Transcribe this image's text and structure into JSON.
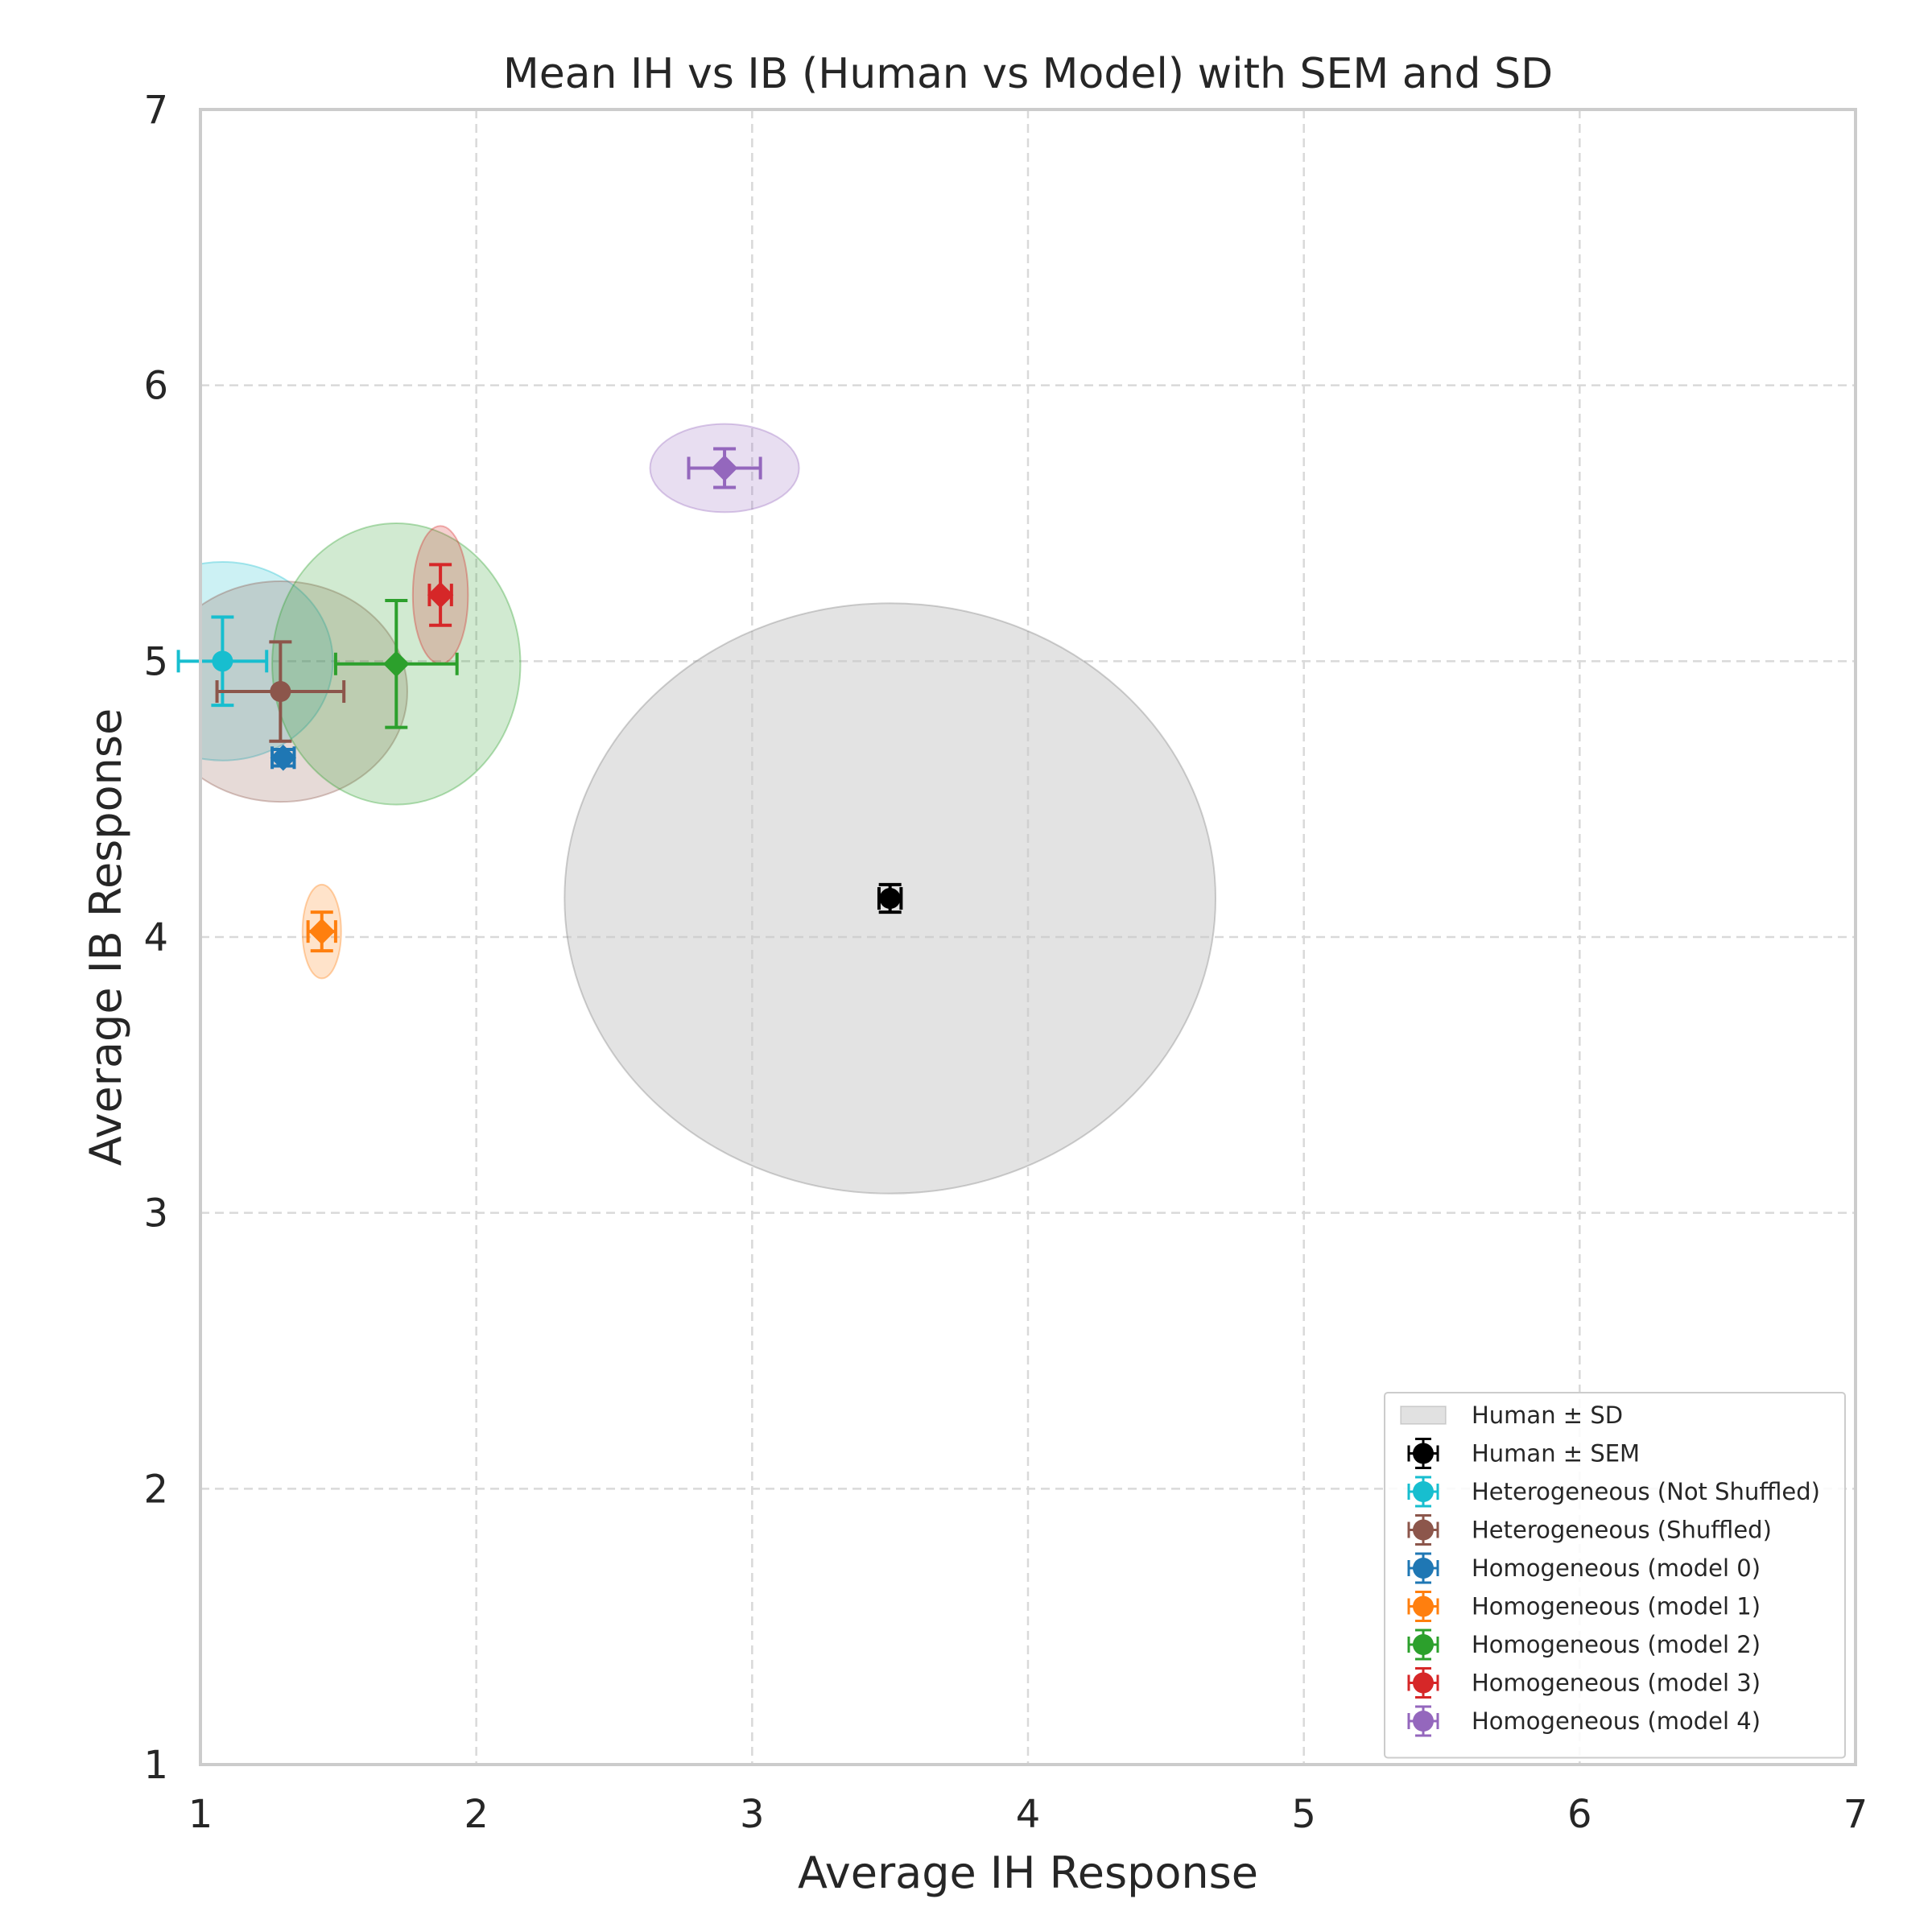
{
  "chart_data": {
    "type": "scatter",
    "title": "Mean IH vs IB (Human vs Model) with SEM and SD",
    "xlabel": "Average IH Response",
    "ylabel": "Average IB Response",
    "xlim": [
      1,
      7
    ],
    "ylim": [
      1,
      7
    ],
    "x_ticks": [
      "1",
      "2",
      "3",
      "4",
      "5",
      "6",
      "7"
    ],
    "y_ticks": [
      "1",
      "2",
      "3",
      "4",
      "5",
      "6",
      "7"
    ],
    "grid": true,
    "legend_position": "lower right",
    "series": [
      {
        "name": "Human ± SEM",
        "sd_label": "Human ± SD",
        "color": "#000000",
        "marker": "circle",
        "x": 3.5,
        "y": 4.14,
        "sem_x": 0.04,
        "sem_y": 0.05,
        "sd_x": 1.18,
        "sd_y": 1.07,
        "sd_fill": "#c8c8c8"
      },
      {
        "name": "Heterogeneous (Not Shuffled)",
        "color": "#17becf",
        "marker": "circle",
        "x": 1.08,
        "y": 5.0,
        "sem_x": 0.16,
        "sem_y": 0.16,
        "sd_x": 0.4,
        "sd_y": 0.36
      },
      {
        "name": "Heterogeneous (Shuffled)",
        "color": "#8c564b",
        "marker": "circle",
        "x": 1.29,
        "y": 4.89,
        "sem_x": 0.23,
        "sem_y": 0.18,
        "sd_x": 0.46,
        "sd_y": 0.4
      },
      {
        "name": "Homogeneous (model 0)",
        "color": "#1f77b4",
        "marker": "diamond",
        "x": 1.3,
        "y": 4.65,
        "sem_x": 0.04,
        "sem_y": 0.03,
        "sd_x": 0.0,
        "sd_y": 0.0
      },
      {
        "name": "Homogeneous (model 1)",
        "color": "#ff7f0e",
        "marker": "diamond",
        "x": 1.44,
        "y": 4.02,
        "sem_x": 0.05,
        "sem_y": 0.07,
        "sd_x": 0.07,
        "sd_y": 0.17
      },
      {
        "name": "Homogeneous (model 2)",
        "color": "#2ca02c",
        "marker": "diamond",
        "x": 1.71,
        "y": 4.99,
        "sem_x": 0.22,
        "sem_y": 0.23,
        "sd_x": 0.45,
        "sd_y": 0.51
      },
      {
        "name": "Homogeneous (model 3)",
        "color": "#d62728",
        "marker": "diamond",
        "x": 1.87,
        "y": 5.24,
        "sem_x": 0.04,
        "sem_y": 0.11,
        "sd_x": 0.1,
        "sd_y": 0.25
      },
      {
        "name": "Homogeneous (model 4)",
        "color": "#9467bd",
        "marker": "diamond",
        "x": 2.9,
        "y": 5.7,
        "sem_x": 0.13,
        "sem_y": 0.07,
        "sd_x": 0.27,
        "sd_y": 0.16
      }
    ]
  }
}
